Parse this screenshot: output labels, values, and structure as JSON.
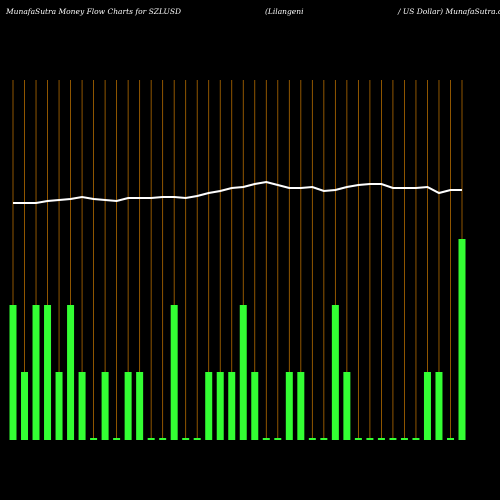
{
  "chart_data": {
    "type": "bar",
    "title": "MunafaSutra  Money Flow  Charts for SZLUSD",
    "subtitle": "(Lilangeni",
    "subtitle2": "/ US Dollar) MunafaSutra.com",
    "categories": [
      null,
      null,
      null,
      null,
      null,
      null,
      null,
      null,
      null,
      null,
      null,
      null,
      null,
      null,
      null,
      null,
      null,
      null,
      null,
      null,
      null,
      null,
      null,
      null,
      null,
      null,
      null,
      null,
      null,
      null,
      null,
      null,
      null,
      null,
      null,
      null,
      null,
      null,
      null,
      null
    ],
    "ylim": [
      0,
      360
    ],
    "grid_color": "#b36b00",
    "series": [
      {
        "type": "bar",
        "color": "#33ff33",
        "values": [
          135,
          68,
          135,
          135,
          68,
          135,
          68,
          2,
          68,
          2,
          68,
          68,
          2,
          2,
          135,
          2,
          2,
          68,
          68,
          68,
          135,
          68,
          2,
          2,
          68,
          68,
          2,
          2,
          135,
          68,
          2,
          2,
          2,
          2,
          2,
          2,
          68,
          68,
          2,
          201
        ]
      },
      {
        "type": "line",
        "color": "#ffffff",
        "values": [
          237,
          237,
          237,
          239,
          240,
          241,
          243,
          241,
          240,
          239,
          242,
          242,
          242,
          243,
          243,
          242,
          244,
          247,
          249,
          252,
          253,
          256,
          258,
          255,
          252,
          252,
          253,
          249,
          250,
          253,
          255,
          256,
          256,
          252,
          252,
          252,
          253,
          247,
          250,
          250
        ]
      }
    ]
  }
}
